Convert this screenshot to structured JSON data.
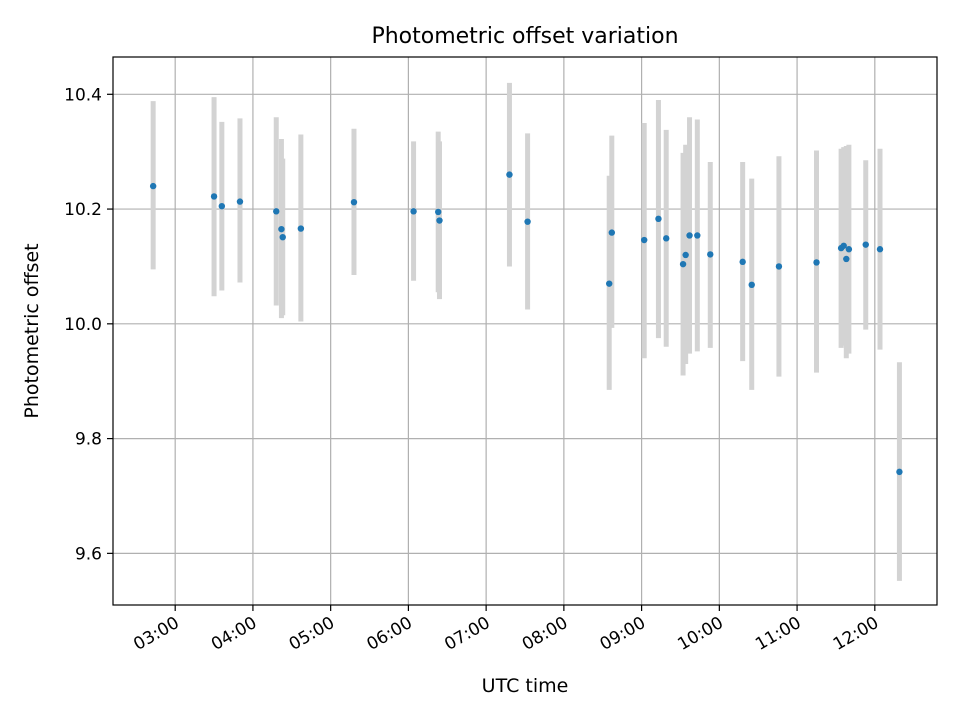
{
  "chart_data": {
    "type": "scatter",
    "title": "Photometric offset variation",
    "xlabel": "UTC time",
    "ylabel": "Photometric offset",
    "x_unit": "UTC time of day (HH:MM)",
    "xlim": [
      "02:12",
      "12:48"
    ],
    "ylim": [
      9.51,
      10.465
    ],
    "grid": true,
    "x_ticks": [
      "03:00",
      "04:00",
      "05:00",
      "06:00",
      "07:00",
      "08:00",
      "09:00",
      "10:00",
      "11:00",
      "12:00"
    ],
    "y_ticks": [
      9.6,
      9.8,
      10.0,
      10.2,
      10.4
    ],
    "y_tick_labels": [
      "9.6",
      "9.8",
      "10.0",
      "10.2",
      "10.4"
    ],
    "colors": {
      "points": "#1f77b4",
      "error_bars": "#d3d3d3",
      "grid": "#b0b0b0"
    },
    "points": [
      {
        "x": "02:43",
        "y": 10.24,
        "lo": 10.095,
        "hi": 10.388
      },
      {
        "x": "03:30",
        "y": 10.222,
        "lo": 10.048,
        "hi": 10.395
      },
      {
        "x": "03:36",
        "y": 10.205,
        "lo": 10.058,
        "hi": 10.352
      },
      {
        "x": "03:50",
        "y": 10.213,
        "lo": 10.072,
        "hi": 10.358
      },
      {
        "x": "04:18",
        "y": 10.196,
        "lo": 10.032,
        "hi": 10.36
      },
      {
        "x": "04:22",
        "y": 10.165,
        "lo": 10.01,
        "hi": 10.322
      },
      {
        "x": "04:23",
        "y": 10.151,
        "lo": 10.015,
        "hi": 10.288
      },
      {
        "x": "04:37",
        "y": 10.166,
        "lo": 10.004,
        "hi": 10.33
      },
      {
        "x": "05:18",
        "y": 10.212,
        "lo": 10.085,
        "hi": 10.34
      },
      {
        "x": "06:04",
        "y": 10.196,
        "lo": 10.075,
        "hi": 10.318
      },
      {
        "x": "06:23",
        "y": 10.195,
        "lo": 10.055,
        "hi": 10.335
      },
      {
        "x": "06:24",
        "y": 10.18,
        "lo": 10.043,
        "hi": 10.318
      },
      {
        "x": "07:18",
        "y": 10.26,
        "lo": 10.1,
        "hi": 10.42
      },
      {
        "x": "07:32",
        "y": 10.178,
        "lo": 10.025,
        "hi": 10.332
      },
      {
        "x": "08:35",
        "y": 10.07,
        "lo": 9.885,
        "hi": 10.258
      },
      {
        "x": "08:37",
        "y": 10.159,
        "lo": 9.993,
        "hi": 10.328
      },
      {
        "x": "09:02",
        "y": 10.146,
        "lo": 9.94,
        "hi": 10.35
      },
      {
        "x": "09:13",
        "y": 10.183,
        "lo": 9.975,
        "hi": 10.39
      },
      {
        "x": "09:19",
        "y": 10.149,
        "lo": 9.96,
        "hi": 10.338
      },
      {
        "x": "09:32",
        "y": 10.104,
        "lo": 9.91,
        "hi": 10.298
      },
      {
        "x": "09:34",
        "y": 10.12,
        "lo": 9.93,
        "hi": 10.312
      },
      {
        "x": "09:37",
        "y": 10.154,
        "lo": 9.948,
        "hi": 10.36
      },
      {
        "x": "09:43",
        "y": 10.154,
        "lo": 9.952,
        "hi": 10.356
      },
      {
        "x": "09:53",
        "y": 10.121,
        "lo": 9.958,
        "hi": 10.282
      },
      {
        "x": "10:18",
        "y": 10.108,
        "lo": 9.935,
        "hi": 10.282
      },
      {
        "x": "10:25",
        "y": 10.068,
        "lo": 9.885,
        "hi": 10.253
      },
      {
        "x": "10:46",
        "y": 10.1,
        "lo": 9.908,
        "hi": 10.292
      },
      {
        "x": "11:15",
        "y": 10.107,
        "lo": 9.915,
        "hi": 10.302
      },
      {
        "x": "11:34",
        "y": 10.132,
        "lo": 9.958,
        "hi": 10.305
      },
      {
        "x": "11:36",
        "y": 10.136,
        "lo": 9.962,
        "hi": 10.308
      },
      {
        "x": "11:38",
        "y": 10.113,
        "lo": 9.94,
        "hi": 10.31
      },
      {
        "x": "11:40",
        "y": 10.13,
        "lo": 9.948,
        "hi": 10.312
      },
      {
        "x": "11:53",
        "y": 10.138,
        "lo": 9.99,
        "hi": 10.285
      },
      {
        "x": "12:04",
        "y": 10.13,
        "lo": 9.955,
        "hi": 10.305
      },
      {
        "x": "12:19",
        "y": 9.742,
        "lo": 9.552,
        "hi": 9.933
      }
    ]
  }
}
